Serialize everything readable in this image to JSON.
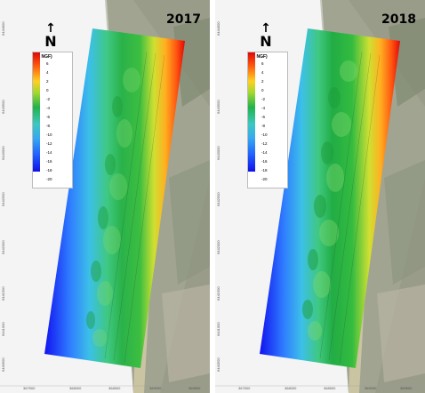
{
  "panels": [
    {
      "year": "2017",
      "north_label": "N",
      "legend": {
        "title": "(m NGF)",
        "labels": [
          "6",
          "4",
          "2",
          "0",
          "-2",
          "-4",
          "-6",
          "-8",
          "-10",
          "-12",
          "-14",
          "-16",
          "-18",
          "-20"
        ]
      },
      "y_ticks": [
        "6444000",
        "6443500",
        "6443000",
        "6442500",
        "6442000",
        "6441500",
        "6441000",
        "6440500"
      ],
      "x_ticks": [
        "367500",
        "368000",
        "368500",
        "369000",
        "369500"
      ]
    },
    {
      "year": "2018",
      "north_label": "N",
      "legend": {
        "title": "(m NGF)",
        "labels": [
          "6",
          "4",
          "2",
          "0",
          "-2",
          "-4",
          "-6",
          "-8",
          "-10",
          "-12",
          "-14",
          "-16",
          "-18",
          "-20"
        ]
      },
      "y_ticks": [
        "6444000",
        "6443500",
        "6443000",
        "6442500",
        "6442000",
        "6441500",
        "6441000",
        "6440500"
      ],
      "x_ticks": [
        "367500",
        "368000",
        "368500",
        "369000",
        "369500"
      ]
    }
  ],
  "colors": {
    "deep": "#1a1aff",
    "mid_blue": "#2b8cff",
    "cyan": "#38c8e8",
    "green": "#22b24c",
    "yellow": "#f0e030",
    "orange": "#ff7a10",
    "red": "#e01010",
    "beach": "#d9cfae",
    "land": "#9ea08e"
  }
}
